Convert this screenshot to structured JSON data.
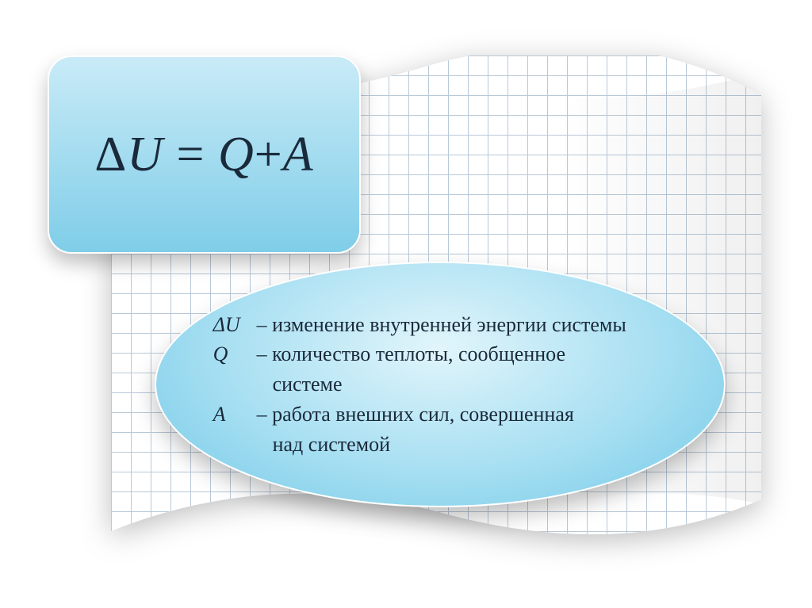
{
  "colors": {
    "grid": "#b9c9d8",
    "text": "#1a2a3a",
    "card_top": "#c9ebf7",
    "card_bottom": "#7fcde8",
    "ellipse_top": "#e1f5fb",
    "ellipse_mid": "#a7dff2",
    "ellipse_bottom": "#72c9e7"
  },
  "formula": {
    "delta": "Δ",
    "lhs_var": "U",
    "eq": " = ",
    "rhs_1": "Q",
    "plus": "+",
    "rhs_2": "A",
    "fontsize": 62
  },
  "legend": {
    "fontsize": 26,
    "items": [
      {
        "symbol": "ΔU",
        "symbol_italic": true,
        "dash": " – ",
        "text": "изменение внутренней энергии системы"
      },
      {
        "symbol": "Q",
        "symbol_italic": true,
        "dash": "   – ",
        "text": "количество теплоты, сообщенное",
        "cont": "системе"
      },
      {
        "symbol": "A",
        "symbol_italic": true,
        "dash": "   – ",
        "text": "работа внешних сил, совершенная",
        "cont": "над системой"
      }
    ]
  }
}
